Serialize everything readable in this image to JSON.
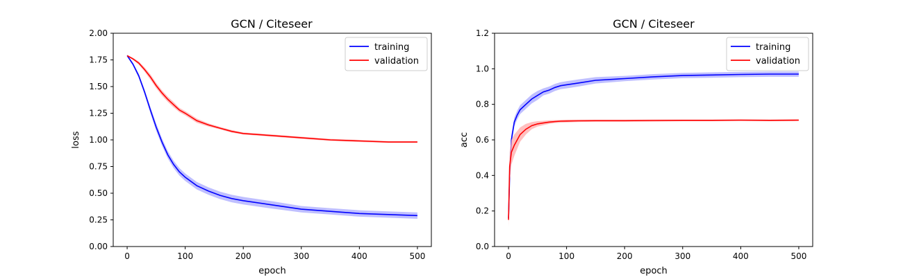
{
  "chart_data": [
    {
      "type": "line",
      "title": "GCN / Citeseer",
      "xlabel": "epoch",
      "ylabel": "loss",
      "xlim": [
        -24,
        524
      ],
      "ylim": [
        0,
        2.0
      ],
      "xticks": [
        0,
        100,
        200,
        300,
        400,
        500
      ],
      "yticks": [
        0.0,
        0.25,
        0.5,
        0.75,
        1.0,
        1.25,
        1.5,
        1.75,
        2.0
      ],
      "ytick_labels": [
        "0.00",
        "0.25",
        "0.50",
        "0.75",
        "1.00",
        "1.25",
        "1.50",
        "1.75",
        "2.00"
      ],
      "legend": "top-right",
      "grid": false,
      "series": [
        {
          "name": "training",
          "color": "#0000ff",
          "band_color": "#aaaaff",
          "x": [
            0,
            10,
            20,
            30,
            40,
            50,
            60,
            70,
            80,
            90,
            100,
            120,
            140,
            160,
            180,
            200,
            250,
            300,
            350,
            400,
            450,
            500
          ],
          "y": [
            1.79,
            1.71,
            1.6,
            1.45,
            1.28,
            1.12,
            0.98,
            0.86,
            0.77,
            0.7,
            0.65,
            0.57,
            0.52,
            0.48,
            0.45,
            0.43,
            0.39,
            0.35,
            0.33,
            0.31,
            0.3,
            0.29
          ],
          "band": [
            0.01,
            0.015,
            0.02,
            0.025,
            0.03,
            0.035,
            0.035,
            0.035,
            0.035,
            0.035,
            0.035,
            0.035,
            0.035,
            0.035,
            0.035,
            0.035,
            0.035,
            0.03,
            0.03,
            0.03,
            0.03,
            0.03
          ]
        },
        {
          "name": "validation",
          "color": "#ff0000",
          "band_color": "#ffaaaa",
          "x": [
            0,
            10,
            20,
            30,
            40,
            50,
            60,
            70,
            80,
            90,
            100,
            120,
            140,
            160,
            180,
            200,
            250,
            300,
            350,
            400,
            450,
            500
          ],
          "y": [
            1.79,
            1.76,
            1.72,
            1.66,
            1.59,
            1.51,
            1.44,
            1.38,
            1.33,
            1.28,
            1.25,
            1.18,
            1.14,
            1.11,
            1.08,
            1.06,
            1.04,
            1.02,
            1.0,
            0.99,
            0.98,
            0.98
          ],
          "band": [
            0.005,
            0.01,
            0.015,
            0.02,
            0.025,
            0.025,
            0.025,
            0.025,
            0.025,
            0.02,
            0.02,
            0.02,
            0.015,
            0.012,
            0.012,
            0.01,
            0.01,
            0.01,
            0.01,
            0.01,
            0.008,
            0.008
          ]
        }
      ]
    },
    {
      "type": "line",
      "title": "GCN / Citeseer",
      "xlabel": "epoch",
      "ylabel": "acc",
      "xlim": [
        -24,
        524
      ],
      "ylim": [
        0,
        1.2
      ],
      "xticks": [
        0,
        100,
        200,
        300,
        400,
        500
      ],
      "yticks": [
        0.0,
        0.2,
        0.4,
        0.6,
        0.8,
        1.0,
        1.2
      ],
      "ytick_labels": [
        "0.0",
        "0.2",
        "0.4",
        "0.6",
        "0.8",
        "1.0",
        "1.2"
      ],
      "legend": "top-right",
      "grid": false,
      "series": [
        {
          "name": "training",
          "color": "#0000ff",
          "band_color": "#aaaaff",
          "x": [
            0,
            2,
            5,
            10,
            15,
            20,
            30,
            40,
            50,
            60,
            70,
            80,
            90,
            100,
            120,
            150,
            200,
            250,
            300,
            350,
            400,
            450,
            500
          ],
          "y": [
            0.16,
            0.4,
            0.6,
            0.7,
            0.74,
            0.77,
            0.8,
            0.83,
            0.85,
            0.87,
            0.88,
            0.895,
            0.905,
            0.91,
            0.92,
            0.935,
            0.945,
            0.955,
            0.962,
            0.965,
            0.968,
            0.97,
            0.97
          ],
          "band": [
            0.01,
            0.03,
            0.03,
            0.025,
            0.025,
            0.025,
            0.025,
            0.025,
            0.025,
            0.02,
            0.02,
            0.02,
            0.02,
            0.02,
            0.02,
            0.018,
            0.015,
            0.015,
            0.015,
            0.015,
            0.015,
            0.015,
            0.015
          ]
        },
        {
          "name": "validation",
          "color": "#ff0000",
          "band_color": "#ffaaaa",
          "x": [
            0,
            2,
            5,
            10,
            15,
            20,
            30,
            40,
            50,
            60,
            70,
            80,
            90,
            100,
            120,
            150,
            200,
            250,
            300,
            350,
            400,
            450,
            500
          ],
          "y": [
            0.15,
            0.45,
            0.53,
            0.57,
            0.6,
            0.63,
            0.66,
            0.68,
            0.69,
            0.695,
            0.7,
            0.703,
            0.705,
            0.706,
            0.707,
            0.708,
            0.708,
            0.709,
            0.71,
            0.71,
            0.711,
            0.71,
            0.711
          ],
          "band": [
            0.04,
            0.08,
            0.07,
            0.06,
            0.05,
            0.04,
            0.03,
            0.02,
            0.015,
            0.012,
            0.01,
            0.008,
            0.008,
            0.008,
            0.007,
            0.006,
            0.006,
            0.006,
            0.005,
            0.005,
            0.005,
            0.005,
            0.005
          ]
        }
      ]
    }
  ]
}
